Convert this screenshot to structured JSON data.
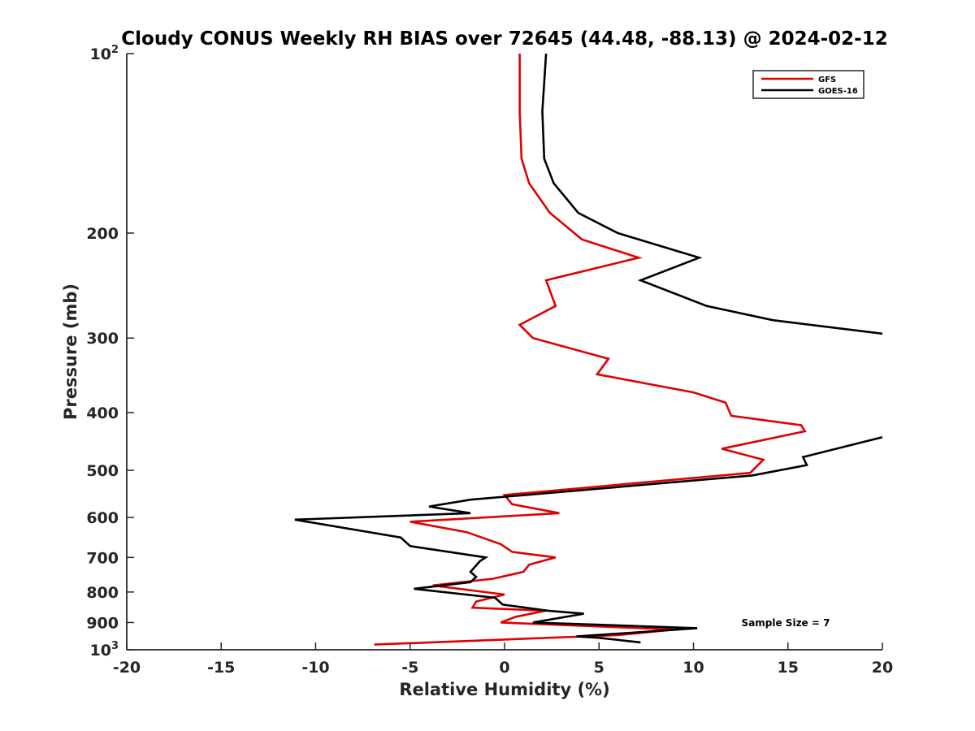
{
  "chart_data": {
    "type": "line",
    "title": "Cloudy CONUS Weekly RH BIAS over 72645 (44.48, -88.13) @ 2024-02-12",
    "xlabel": "Relative Humidity (%)",
    "ylabel": "Pressure (mb)",
    "xlim": [
      -20,
      20
    ],
    "ylim": [
      100,
      1000
    ],
    "y_scale": "log",
    "y_reversed": true,
    "grid": false,
    "legend_position": "top-right",
    "x_ticks": [
      -20,
      -15,
      -10,
      -5,
      0,
      5,
      10,
      15,
      20
    ],
    "x_tick_labels": [
      "-20",
      "-15",
      "-10",
      "-5",
      "0",
      "5",
      "10",
      "15",
      "20"
    ],
    "y_ticks": [
      100,
      200,
      300,
      400,
      500,
      600,
      700,
      800,
      900,
      1000
    ],
    "y_tick_labels": [
      {
        "base": "10",
        "exp": "2"
      },
      {
        "base": "200",
        "exp": ""
      },
      {
        "base": "300",
        "exp": ""
      },
      {
        "base": "400",
        "exp": ""
      },
      {
        "base": "500",
        "exp": ""
      },
      {
        "base": "600",
        "exp": ""
      },
      {
        "base": "700",
        "exp": ""
      },
      {
        "base": "800",
        "exp": ""
      },
      {
        "base": "900",
        "exp": ""
      },
      {
        "base": "10",
        "exp": "3"
      }
    ],
    "annotation": "Sample Size = 7",
    "series": [
      {
        "name": "GFS",
        "color": "#e00000",
        "points": [
          {
            "x": 0.8,
            "p": 100
          },
          {
            "x": 0.8,
            "p": 125
          },
          {
            "x": 0.9,
            "p": 150
          },
          {
            "x": 1.3,
            "p": 165
          },
          {
            "x": 2.4,
            "p": 185
          },
          {
            "x": 4.1,
            "p": 205
          },
          {
            "x": 7.1,
            "p": 220
          },
          {
            "x": 2.2,
            "p": 240
          },
          {
            "x": 2.7,
            "p": 265
          },
          {
            "x": 0.8,
            "p": 285
          },
          {
            "x": 1.5,
            "p": 300
          },
          {
            "x": 5.5,
            "p": 325
          },
          {
            "x": 4.9,
            "p": 345
          },
          {
            "x": 10.0,
            "p": 370
          },
          {
            "x": 11.7,
            "p": 385
          },
          {
            "x": 12.0,
            "p": 405
          },
          {
            "x": 15.7,
            "p": 420
          },
          {
            "x": 15.9,
            "p": 430
          },
          {
            "x": 11.5,
            "p": 460
          },
          {
            "x": 13.7,
            "p": 480
          },
          {
            "x": 13.0,
            "p": 505
          },
          {
            "x": 0.0,
            "p": 550
          },
          {
            "x": 0.4,
            "p": 570
          },
          {
            "x": 2.9,
            "p": 590
          },
          {
            "x": -5.0,
            "p": 610
          },
          {
            "x": -2.0,
            "p": 635
          },
          {
            "x": -0.2,
            "p": 665
          },
          {
            "x": 0.4,
            "p": 685
          },
          {
            "x": 2.7,
            "p": 700
          },
          {
            "x": 1.3,
            "p": 720
          },
          {
            "x": 1.0,
            "p": 740
          },
          {
            "x": -0.6,
            "p": 760
          },
          {
            "x": -3.8,
            "p": 780
          },
          {
            "x": 0.0,
            "p": 808
          },
          {
            "x": -1.5,
            "p": 830
          },
          {
            "x": -1.7,
            "p": 850
          },
          {
            "x": 2.2,
            "p": 860
          },
          {
            "x": 0.6,
            "p": 880
          },
          {
            "x": -0.2,
            "p": 900
          },
          {
            "x": 9.0,
            "p": 925
          },
          {
            "x": 6.0,
            "p": 945
          },
          {
            "x": -6.9,
            "p": 980
          }
        ]
      },
      {
        "name": "GOES-16",
        "color": "#000000",
        "points": [
          {
            "x": 2.2,
            "p": 100
          },
          {
            "x": 2.0,
            "p": 125
          },
          {
            "x": 2.1,
            "p": 150
          },
          {
            "x": 2.6,
            "p": 165
          },
          {
            "x": 3.9,
            "p": 185
          },
          {
            "x": 6.0,
            "p": 200
          },
          {
            "x": 10.3,
            "p": 220
          },
          {
            "x": 7.2,
            "p": 240
          },
          {
            "x": 10.7,
            "p": 265
          },
          {
            "x": 14.2,
            "p": 280
          },
          {
            "x": 20.0,
            "p": 295
          },
          {
            "x": null,
            "p": 300
          },
          {
            "x": 20.0,
            "p": 440
          },
          {
            "x": 15.8,
            "p": 475
          },
          {
            "x": 16.0,
            "p": 490
          },
          {
            "x": 13.1,
            "p": 510
          },
          {
            "x": -1.8,
            "p": 560
          },
          {
            "x": -4.0,
            "p": 575
          },
          {
            "x": -1.8,
            "p": 590
          },
          {
            "x": -11.1,
            "p": 605
          },
          {
            "x": -5.5,
            "p": 648
          },
          {
            "x": -5.0,
            "p": 670
          },
          {
            "x": -1.0,
            "p": 700
          },
          {
            "x": -1.3,
            "p": 710
          },
          {
            "x": -1.8,
            "p": 740
          },
          {
            "x": -1.5,
            "p": 755
          },
          {
            "x": -1.8,
            "p": 770
          },
          {
            "x": -4.8,
            "p": 790
          },
          {
            "x": -0.5,
            "p": 818
          },
          {
            "x": -0.1,
            "p": 840
          },
          {
            "x": 2.3,
            "p": 860
          },
          {
            "x": 4.2,
            "p": 870
          },
          {
            "x": 1.5,
            "p": 900
          },
          {
            "x": 10.2,
            "p": 920
          },
          {
            "x": 3.8,
            "p": 950
          },
          {
            "x": 5.0,
            "p": 955
          },
          {
            "x": 7.2,
            "p": 972
          }
        ]
      }
    ]
  }
}
